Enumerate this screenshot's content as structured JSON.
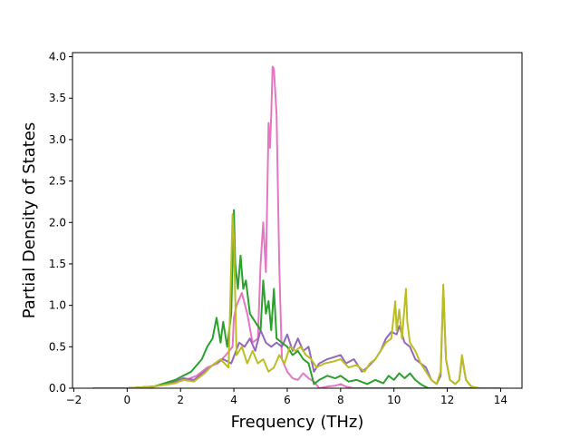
{
  "chart_data": {
    "type": "line",
    "title": "",
    "xlabel": "Frequency (THz)",
    "ylabel": "Partial Density of States",
    "xlim": [
      -2.05,
      14.8
    ],
    "ylim": [
      0.0,
      4.05
    ],
    "xticks": [
      -2,
      0,
      2,
      4,
      6,
      8,
      10,
      12,
      14
    ],
    "yticks": [
      0.0,
      0.5,
      1.0,
      1.5,
      2.0,
      2.5,
      3.0,
      3.5,
      4.0
    ],
    "xtick_labels": [
      "−2",
      "0",
      "2",
      "4",
      "6",
      "8",
      "10",
      "12",
      "14"
    ],
    "ytick_labels": [
      "0.0",
      "0.5",
      "1.0",
      "1.5",
      "2.0",
      "2.5",
      "3.0",
      "3.5",
      "4.0"
    ],
    "grid": false,
    "legend": "none",
    "series": [
      {
        "color": "#e377c2",
        "x": [
          -1.3,
          0.0,
          1.0,
          1.8,
          2.2,
          2.6,
          3.0,
          3.4,
          3.7,
          3.95,
          4.0,
          4.1,
          4.3,
          4.5,
          4.7,
          4.9,
          5.0,
          5.1,
          5.2,
          5.3,
          5.35,
          5.4,
          5.45,
          5.5,
          5.6,
          5.7,
          5.8,
          6.0,
          6.2,
          6.4,
          6.6,
          6.8,
          7.0,
          7.2,
          7.5,
          7.8,
          8.0,
          8.2,
          8.5,
          9.0,
          9.5,
          10.0,
          10.5,
          11.0,
          11.5,
          11.7,
          11.8,
          11.9,
          12.1,
          12.3,
          12.5,
          12.7,
          13.0,
          14.0
        ],
        "y": [
          0.0,
          0.0,
          0.02,
          0.08,
          0.1,
          0.15,
          0.25,
          0.3,
          0.4,
          0.5,
          0.85,
          1.0,
          1.15,
          0.9,
          0.55,
          0.6,
          1.5,
          2.0,
          1.4,
          3.2,
          2.9,
          3.3,
          3.88,
          3.85,
          3.3,
          1.5,
          0.35,
          0.2,
          0.12,
          0.1,
          0.18,
          0.12,
          0.08,
          0.0,
          0.02,
          0.03,
          0.05,
          0.02,
          0.0,
          0.0,
          0.0,
          0.0,
          0.0,
          0.0,
          0.0,
          0.0,
          0.0,
          0.0,
          0.0,
          0.0,
          0.0,
          0.0,
          0.0,
          0.0
        ]
      },
      {
        "color": "#9467bd",
        "x": [
          -1.3,
          0.0,
          1.0,
          1.8,
          2.1,
          2.5,
          2.9,
          3.3,
          3.6,
          3.9,
          4.2,
          4.4,
          4.6,
          4.8,
          5.0,
          5.2,
          5.4,
          5.6,
          5.8,
          6.0,
          6.2,
          6.4,
          6.6,
          6.8,
          7.0,
          7.2,
          7.5,
          7.8,
          8.0,
          8.2,
          8.5,
          8.8,
          9.0,
          9.3,
          9.5,
          9.7,
          9.9,
          10.1,
          10.2,
          10.4,
          10.6,
          10.8,
          11.0,
          11.2,
          11.4,
          11.6,
          11.75,
          11.85,
          11.95,
          12.1,
          12.3,
          12.45,
          12.55,
          12.7,
          12.9,
          13.2,
          14.0
        ],
        "y": [
          0.0,
          0.0,
          0.02,
          0.08,
          0.12,
          0.1,
          0.2,
          0.3,
          0.35,
          0.3,
          0.55,
          0.5,
          0.6,
          0.45,
          0.7,
          0.55,
          0.5,
          0.55,
          0.5,
          0.65,
          0.45,
          0.6,
          0.45,
          0.5,
          0.2,
          0.3,
          0.35,
          0.38,
          0.4,
          0.3,
          0.35,
          0.2,
          0.25,
          0.35,
          0.45,
          0.6,
          0.68,
          0.65,
          0.75,
          0.55,
          0.5,
          0.35,
          0.3,
          0.25,
          0.1,
          0.05,
          0.15,
          1.2,
          0.35,
          0.1,
          0.05,
          0.1,
          0.38,
          0.1,
          0.02,
          0.0,
          0.0
        ]
      },
      {
        "color": "#2ca02c",
        "x": [
          -1.3,
          0.0,
          1.0,
          1.8,
          2.1,
          2.4,
          2.8,
          3.0,
          3.2,
          3.35,
          3.5,
          3.6,
          3.75,
          3.9,
          4.0,
          4.05,
          4.15,
          4.25,
          4.35,
          4.45,
          4.6,
          4.8,
          5.0,
          5.1,
          5.2,
          5.3,
          5.4,
          5.5,
          5.6,
          5.8,
          6.0,
          6.2,
          6.4,
          6.6,
          6.8,
          7.0,
          7.2,
          7.5,
          7.8,
          8.0,
          8.3,
          8.6,
          9.0,
          9.3,
          9.6,
          9.8,
          10.0,
          10.2,
          10.4,
          10.6,
          10.8,
          11.0,
          11.1,
          11.3,
          11.5,
          12.0,
          14.0
        ],
        "y": [
          0.0,
          0.0,
          0.02,
          0.1,
          0.15,
          0.2,
          0.35,
          0.5,
          0.6,
          0.85,
          0.55,
          0.8,
          0.5,
          0.9,
          2.15,
          1.5,
          1.2,
          1.6,
          1.2,
          1.3,
          0.9,
          0.8,
          0.7,
          1.3,
          0.9,
          1.05,
          0.7,
          1.2,
          0.6,
          0.55,
          0.5,
          0.4,
          0.45,
          0.35,
          0.3,
          0.05,
          0.1,
          0.15,
          0.12,
          0.15,
          0.08,
          0.1,
          0.05,
          0.1,
          0.06,
          0.15,
          0.1,
          0.18,
          0.12,
          0.18,
          0.1,
          0.05,
          0.03,
          0.0,
          0.0,
          0.0,
          0.0
        ]
      },
      {
        "color": "#bcbd22",
        "x": [
          -1.3,
          0.0,
          1.0,
          1.8,
          2.1,
          2.5,
          2.9,
          3.2,
          3.5,
          3.8,
          3.95,
          4.0,
          4.1,
          4.3,
          4.5,
          4.7,
          4.9,
          5.1,
          5.3,
          5.5,
          5.7,
          5.9,
          6.1,
          6.3,
          6.5,
          6.7,
          6.9,
          7.1,
          7.4,
          7.7,
          8.0,
          8.3,
          8.6,
          8.9,
          9.1,
          9.3,
          9.5,
          9.7,
          9.9,
          10.05,
          10.1,
          10.2,
          10.3,
          10.45,
          10.5,
          10.6,
          10.8,
          11.0,
          11.2,
          11.4,
          11.6,
          11.75,
          11.85,
          11.95,
          12.1,
          12.3,
          12.45,
          12.55,
          12.7,
          12.9,
          13.2,
          14.0
        ],
        "y": [
          0.0,
          0.0,
          0.02,
          0.06,
          0.1,
          0.08,
          0.18,
          0.28,
          0.35,
          0.25,
          2.1,
          1.8,
          0.4,
          0.5,
          0.3,
          0.45,
          0.3,
          0.35,
          0.2,
          0.25,
          0.4,
          0.3,
          0.5,
          0.45,
          0.5,
          0.4,
          0.35,
          0.25,
          0.3,
          0.32,
          0.35,
          0.25,
          0.28,
          0.2,
          0.3,
          0.35,
          0.45,
          0.55,
          0.6,
          1.05,
          0.7,
          0.95,
          0.6,
          1.2,
          0.8,
          0.55,
          0.45,
          0.3,
          0.2,
          0.1,
          0.05,
          0.2,
          1.25,
          0.35,
          0.1,
          0.05,
          0.1,
          0.4,
          0.1,
          0.02,
          0.0,
          0.0
        ]
      }
    ]
  }
}
